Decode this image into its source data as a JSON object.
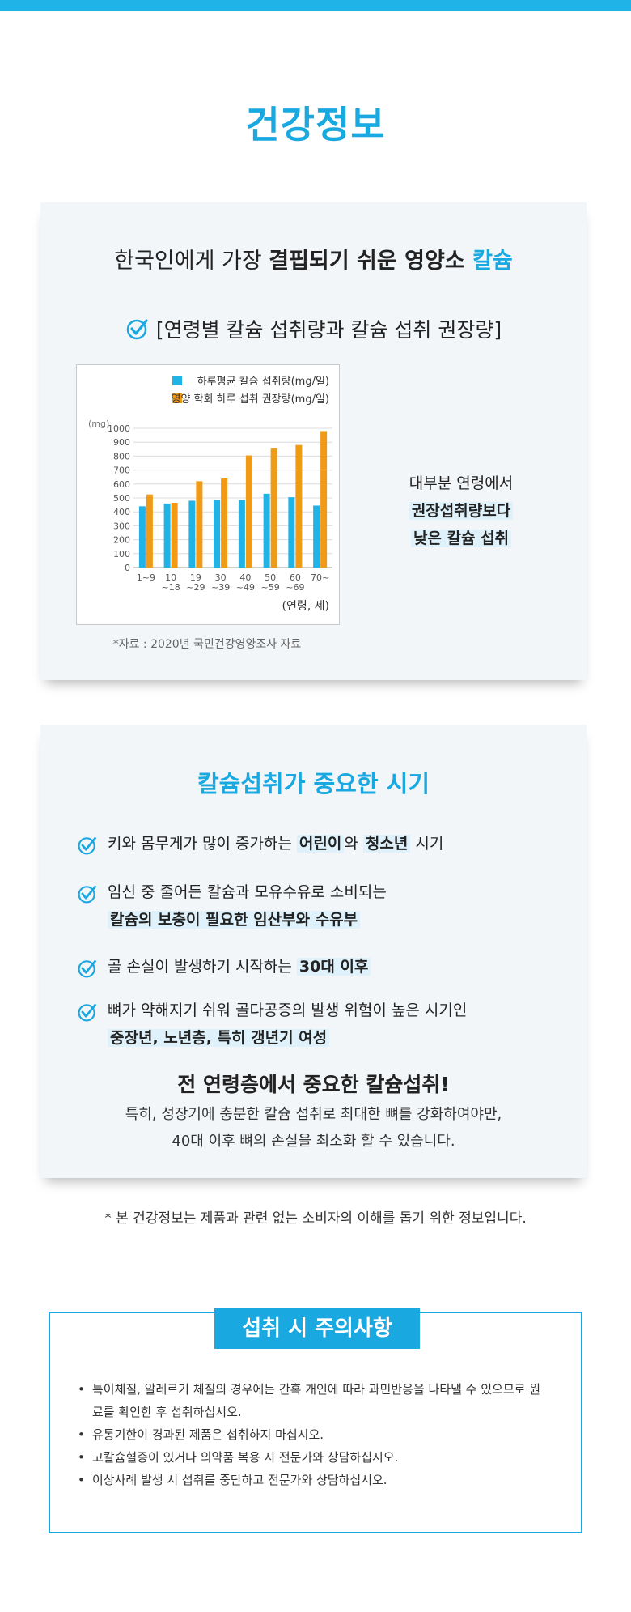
{
  "page_title": "건강정보",
  "card1": {
    "heading_pre": "한국인에게 가장 ",
    "heading_bold": "결핍되기 쉬운 영양소 ",
    "heading_accent": "칼슘",
    "subheading": "[연령별 칼슘 섭취량과 칼슘 섭취 권장량]",
    "source": "*자료 : 2020년 국민건강영양조사 자료",
    "side_line1": "대부분 연령에서",
    "side_line2": "권장섭취량보다",
    "side_line3": "낮은 칼슘 섭취"
  },
  "chart_data": {
    "type": "bar",
    "categories": [
      "1~9",
      "10\n~18",
      "19\n~29",
      "30\n~39",
      "40\n~49",
      "50\n~59",
      "60\n~69",
      "70~"
    ],
    "series": [
      {
        "name": "하루평균 칼슘 섭취량(mg/일)",
        "color": "#1fb3e8",
        "values": [
          440,
          460,
          480,
          485,
          485,
          530,
          505,
          445
        ]
      },
      {
        "name": "영양 학회 하루 섭취 권장량(mg/일)",
        "color": "#f09a16",
        "values": [
          525,
          465,
          620,
          640,
          805,
          860,
          880,
          980
        ]
      }
    ],
    "ylabel": "(mg)",
    "xlabel": "(연령, 세)",
    "ylim": [
      0,
      1000
    ],
    "yticks": [
      0,
      100,
      200,
      300,
      400,
      500,
      600,
      700,
      800,
      900,
      1000
    ],
    "legend": "top-right",
    "grid": true
  },
  "card2": {
    "title": "칼슘섭취가 중요한 시기",
    "item1_a": "키와 몸무게가 많이 증가하는 ",
    "item1_b": "어린이",
    "item1_c": "와 ",
    "item1_d": "청소년",
    "item1_e": " 시기",
    "item2_line1": "임신 중 줄어든 칼슘과 모유수유로 소비되는",
    "item2_line2": "칼슘의 보충이 필요한 임산부와 수유부",
    "item3_a": "골 손실이 발생하기 시작하는 ",
    "item3_b": "30대 이후",
    "item4_line1": "뼈가 약해지기 쉬워 골다공증의 발생 위험이 높은 시기인",
    "item4_line2": "중장년, 노년층, 특히 갱년기 여성",
    "emph_title": "전 연령층에서 중요한 칼슘섭취!",
    "emph_line1": "특히, 성장기에 충분한 칼슘 섭취로 최대한 뼈를 강화하여야만,",
    "emph_line2": "40대 이후 뼈의 손실을 최소화 할 수 있습니다."
  },
  "disclaimer": "* 본 건강정보는 제품과 관련 없는 소비자의 이해를 돕기 위한 정보입니다.",
  "caution": {
    "title": "섭취 시 주의사항",
    "items": [
      "특이체질, 알레르기 체질의 경우에는 간혹 개인에 따라 과민반응을 나타낼 수 있으므로 원료를 확인한 후 섭취하십시오.",
      "유통기한이 경과된 제품은 섭취하지 마십시오.",
      "고칼슘혈증이 있거나 의약품 복용 시 전문가와 상담하십시오.",
      "이상사례 발생 시 섭취를 중단하고 전문가와 상담하십시오."
    ]
  },
  "colors": {
    "accent": "#1aa8e0",
    "bar_intake": "#1fb3e8",
    "bar_recommended": "#f09a16"
  },
  "icons": {
    "check": "check-circle-icon"
  }
}
